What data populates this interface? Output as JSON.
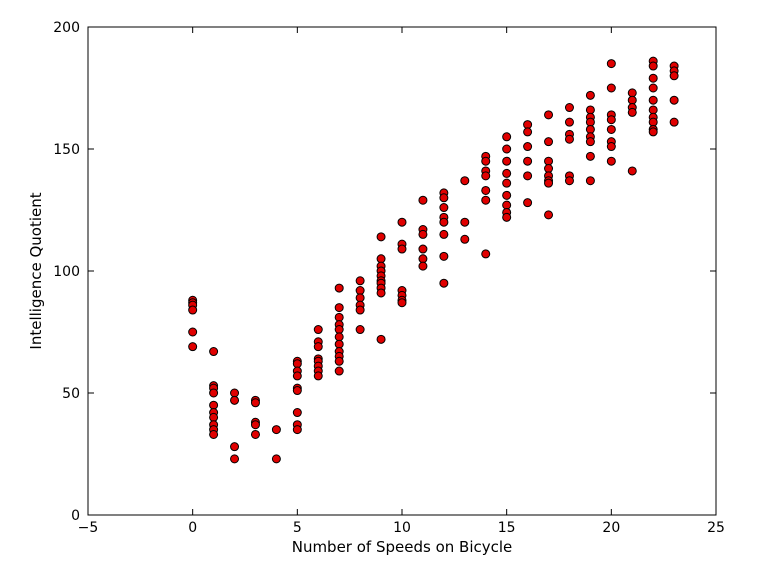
{
  "chart_data": {
    "type": "scatter",
    "title": "",
    "xlabel": "Number of Speeds on Bicycle",
    "ylabel": "Intelligence Quotient",
    "xlim": [
      -5,
      25
    ],
    "ylim": [
      0,
      200
    ],
    "xticks": [
      -5,
      0,
      5,
      10,
      15,
      20,
      25
    ],
    "xtick_labels": [
      "−5",
      "0",
      "5",
      "10",
      "15",
      "20",
      "25"
    ],
    "yticks": [
      0,
      50,
      100,
      150,
      200
    ],
    "ytick_labels": [
      "0",
      "50",
      "100",
      "150",
      "200"
    ],
    "grid": false,
    "legend": "none",
    "marker_color": "#e00000",
    "marker_edge": "#000000",
    "points": [
      [
        0,
        88
      ],
      [
        0,
        87
      ],
      [
        0,
        86
      ],
      [
        0,
        84
      ],
      [
        0,
        75
      ],
      [
        0,
        69
      ],
      [
        1,
        67
      ],
      [
        1,
        53
      ],
      [
        1,
        52
      ],
      [
        1,
        50
      ],
      [
        1,
        45
      ],
      [
        1,
        42
      ],
      [
        1,
        40
      ],
      [
        1,
        37
      ],
      [
        1,
        35
      ],
      [
        1,
        33
      ],
      [
        2,
        50
      ],
      [
        2,
        47
      ],
      [
        2,
        28
      ],
      [
        2,
        23
      ],
      [
        3,
        47
      ],
      [
        3,
        46
      ],
      [
        3,
        38
      ],
      [
        3,
        37
      ],
      [
        3,
        33
      ],
      [
        4,
        35
      ],
      [
        4,
        23
      ],
      [
        5,
        63
      ],
      [
        5,
        62
      ],
      [
        5,
        59
      ],
      [
        5,
        57
      ],
      [
        5,
        52
      ],
      [
        5,
        51
      ],
      [
        5,
        42
      ],
      [
        5,
        37
      ],
      [
        5,
        35
      ],
      [
        6,
        76
      ],
      [
        6,
        71
      ],
      [
        6,
        69
      ],
      [
        6,
        64
      ],
      [
        6,
        63
      ],
      [
        6,
        61
      ],
      [
        6,
        59
      ],
      [
        6,
        57
      ],
      [
        7,
        93
      ],
      [
        7,
        85
      ],
      [
        7,
        81
      ],
      [
        7,
        78
      ],
      [
        7,
        76
      ],
      [
        7,
        73
      ],
      [
        7,
        70
      ],
      [
        7,
        67
      ],
      [
        7,
        65
      ],
      [
        7,
        63
      ],
      [
        7,
        59
      ],
      [
        8,
        96
      ],
      [
        8,
        92
      ],
      [
        8,
        89
      ],
      [
        8,
        86
      ],
      [
        8,
        84
      ],
      [
        8,
        76
      ],
      [
        9,
        114
      ],
      [
        9,
        105
      ],
      [
        9,
        102
      ],
      [
        9,
        100
      ],
      [
        9,
        98
      ],
      [
        9,
        96
      ],
      [
        9,
        95
      ],
      [
        9,
        93
      ],
      [
        9,
        91
      ],
      [
        9,
        72
      ],
      [
        10,
        120
      ],
      [
        10,
        111
      ],
      [
        10,
        109
      ],
      [
        10,
        92
      ],
      [
        10,
        90
      ],
      [
        10,
        88
      ],
      [
        10,
        87
      ],
      [
        11,
        129
      ],
      [
        11,
        117
      ],
      [
        11,
        115
      ],
      [
        11,
        109
      ],
      [
        11,
        105
      ],
      [
        11,
        102
      ],
      [
        12,
        132
      ],
      [
        12,
        130
      ],
      [
        12,
        126
      ],
      [
        12,
        122
      ],
      [
        12,
        120
      ],
      [
        12,
        115
      ],
      [
        12,
        106
      ],
      [
        12,
        95
      ],
      [
        13,
        137
      ],
      [
        13,
        120
      ],
      [
        13,
        113
      ],
      [
        14,
        147
      ],
      [
        14,
        145
      ],
      [
        14,
        141
      ],
      [
        14,
        139
      ],
      [
        14,
        133
      ],
      [
        14,
        129
      ],
      [
        14,
        107
      ],
      [
        15,
        155
      ],
      [
        15,
        150
      ],
      [
        15,
        145
      ],
      [
        15,
        140
      ],
      [
        15,
        136
      ],
      [
        15,
        131
      ],
      [
        15,
        127
      ],
      [
        15,
        124
      ],
      [
        15,
        122
      ],
      [
        16,
        160
      ],
      [
        16,
        157
      ],
      [
        16,
        151
      ],
      [
        16,
        145
      ],
      [
        16,
        139
      ],
      [
        16,
        128
      ],
      [
        17,
        164
      ],
      [
        17,
        153
      ],
      [
        17,
        145
      ],
      [
        17,
        142
      ],
      [
        17,
        139
      ],
      [
        17,
        137
      ],
      [
        17,
        136
      ],
      [
        17,
        123
      ],
      [
        18,
        167
      ],
      [
        18,
        161
      ],
      [
        18,
        156
      ],
      [
        18,
        154
      ],
      [
        18,
        139
      ],
      [
        18,
        137
      ],
      [
        19,
        172
      ],
      [
        19,
        166
      ],
      [
        19,
        163
      ],
      [
        19,
        161
      ],
      [
        19,
        158
      ],
      [
        19,
        155
      ],
      [
        19,
        153
      ],
      [
        19,
        147
      ],
      [
        19,
        137
      ],
      [
        20,
        185
      ],
      [
        20,
        175
      ],
      [
        20,
        164
      ],
      [
        20,
        162
      ],
      [
        20,
        158
      ],
      [
        20,
        153
      ],
      [
        20,
        151
      ],
      [
        20,
        145
      ],
      [
        21,
        173
      ],
      [
        21,
        170
      ],
      [
        21,
        167
      ],
      [
        21,
        165
      ],
      [
        21,
        141
      ],
      [
        22,
        186
      ],
      [
        22,
        184
      ],
      [
        22,
        179
      ],
      [
        22,
        175
      ],
      [
        22,
        170
      ],
      [
        22,
        166
      ],
      [
        22,
        163
      ],
      [
        22,
        161
      ],
      [
        22,
        158
      ],
      [
        22,
        157
      ],
      [
        23,
        184
      ],
      [
        23,
        182
      ],
      [
        23,
        180
      ],
      [
        23,
        170
      ],
      [
        23,
        161
      ]
    ]
  }
}
